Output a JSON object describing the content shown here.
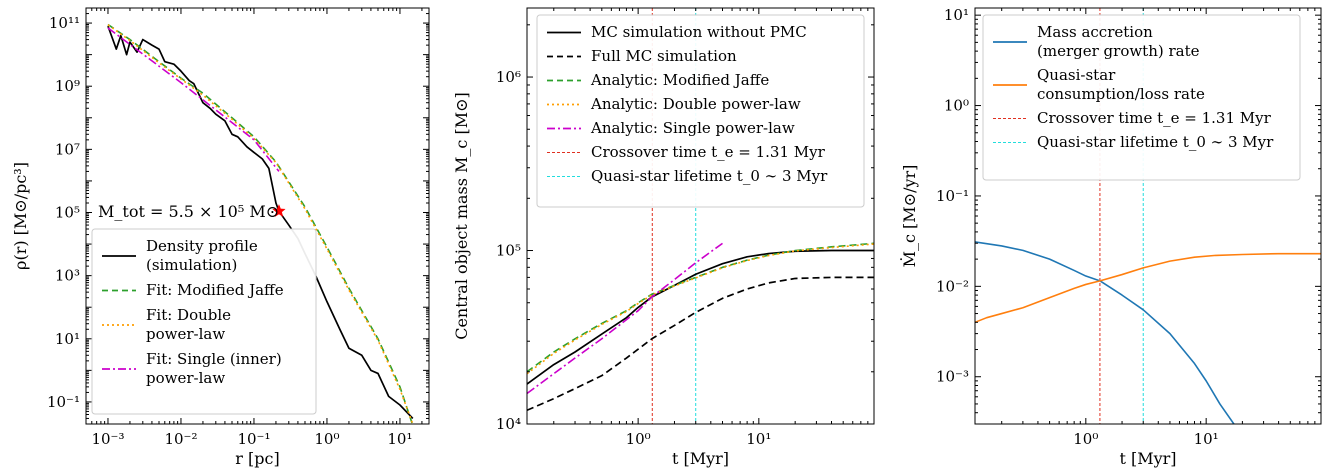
{
  "colors": {
    "sim": "#000000",
    "jaffe": "#2ca02c",
    "double": "#ff9f00",
    "single": "#cc00cc",
    "crossover": "#e03020",
    "lifetime": "#22dddd",
    "accretion": "#1f77b4",
    "consumption": "#ff7f0e",
    "star": "#ff0000"
  },
  "chart_data": [
    {
      "type": "line",
      "xlabel": "r [pc]",
      "ylabel": "ρ(r) [M⊙/pc³]",
      "xscale": "log",
      "yscale": "log",
      "xlim": [
        0.0005,
        25
      ],
      "ylim": [
        0.02,
        300000000000
      ],
      "x_ticks": [
        {
          "value": 0.001,
          "label": "10⁻³"
        },
        {
          "value": 0.01,
          "label": "10⁻²"
        },
        {
          "value": 0.1,
          "label": "10⁻¹"
        },
        {
          "value": 1,
          "label": "10⁰"
        },
        {
          "value": 10,
          "label": "10¹"
        }
      ],
      "y_ticks": [
        {
          "value": 0.1,
          "label": "10⁻¹"
        },
        {
          "value": 10,
          "label": "10¹"
        },
        {
          "value": 1000,
          "label": "10³"
        },
        {
          "value": 100000,
          "label": "10⁵"
        },
        {
          "value": 10000000,
          "label": "10⁷"
        },
        {
          "value": 1000000000,
          "label": "10⁹"
        },
        {
          "value": 100000000000,
          "label": "10¹¹"
        }
      ],
      "annotation": "M_tot = 5.5 × 10⁵ M⊙",
      "legend_position": "lower-left",
      "marker": {
        "x": 0.22,
        "y": 110000,
        "symbol": "star"
      },
      "series": [
        {
          "name": "Density profile (simulation)",
          "legend_lines": [
            "Density profile",
            "(simulation)"
          ],
          "color_key": "sim",
          "dash": "solid",
          "x": [
            0.001,
            0.0013,
            0.0015,
            0.0018,
            0.002,
            0.0025,
            0.003,
            0.004,
            0.005,
            0.006,
            0.008,
            0.01,
            0.013,
            0.015,
            0.02,
            0.025,
            0.03,
            0.04,
            0.05,
            0.06,
            0.08,
            0.1,
            0.13,
            0.16,
            0.2,
            0.22,
            0.3,
            0.4,
            0.5,
            0.7,
            1,
            1.5,
            2,
            3,
            4,
            5,
            7,
            10,
            15
          ],
          "y": [
            80000000000,
            15000000000,
            40000000000,
            10000000000,
            25000000000,
            12000000000,
            30000000000,
            20000000000,
            15000000000,
            6000000000,
            5000000000,
            3000000000,
            1500000000,
            1200000000,
            300000000,
            200000000,
            130000000,
            80000000,
            30000000,
            25000000,
            12000000,
            8000000,
            5000000,
            2500000,
            200000,
            110000,
            40000,
            15000,
            5000,
            1000,
            150,
            20,
            5,
            3,
            1,
            0.8,
            0.15,
            0.08,
            0.03
          ]
        },
        {
          "name": "Fit: Modified Jaffe",
          "legend_lines": [
            "Fit: Modified Jaffe"
          ],
          "color_key": "jaffe",
          "dash": "dashed",
          "x": [
            0.001,
            0.002,
            0.005,
            0.01,
            0.02,
            0.05,
            0.1,
            0.2,
            0.5,
            1,
            2,
            5,
            10,
            15
          ],
          "y": [
            90000000000,
            30000000000,
            6000000000,
            1800000000,
            600000000,
            100000000,
            25000000,
            4000000,
            150000,
            8000,
            400,
            10,
            0.3,
            0.018
          ]
        },
        {
          "name": "Fit: Double power-law",
          "legend_lines": [
            "Fit: Double",
            "power-law"
          ],
          "color_key": "double",
          "dash": "dotted",
          "x": [
            0.001,
            0.002,
            0.005,
            0.01,
            0.02,
            0.05,
            0.1,
            0.2,
            0.5,
            1,
            2,
            5,
            10,
            15
          ],
          "y": [
            88000000000,
            28000000000,
            5500000000,
            1700000000,
            520000000,
            90000000,
            22000000,
            3800000,
            130000,
            7000,
            350,
            9,
            0.25,
            0.02
          ]
        },
        {
          "name": "Fit: Single (inner) power-law",
          "legend_lines": [
            "Fit: Single (inner)",
            "power-law"
          ],
          "color_key": "single",
          "dash": "dashdot",
          "x": [
            0.001,
            0.01,
            0.1,
            0.22
          ],
          "y": [
            70000000000,
            1300000000,
            20000000,
            2000000
          ]
        }
      ]
    },
    {
      "type": "line",
      "xlabel": "t [Myr]",
      "ylabel": "Central object mass M_c [M⊙]",
      "xscale": "log",
      "yscale": "log",
      "xlim": [
        0.12,
        90
      ],
      "ylim": [
        10000,
        2500000
      ],
      "x_ticks": [
        {
          "value": 1,
          "label": "10⁰"
        },
        {
          "value": 10,
          "label": "10¹"
        }
      ],
      "y_ticks": [
        {
          "value": 10000,
          "label": "10⁴"
        },
        {
          "value": 100000,
          "label": "10⁵"
        },
        {
          "value": 1000000,
          "label": "10⁶"
        }
      ],
      "legend_position": "upper-left",
      "vlines": [
        {
          "x": 1.31,
          "color_key": "crossover"
        },
        {
          "x": 3,
          "color_key": "lifetime"
        }
      ],
      "series": [
        {
          "name": "MC simulation without PMC",
          "color_key": "sim",
          "dash": "solid",
          "x": [
            0.12,
            0.2,
            0.3,
            0.5,
            0.8,
            1,
            1.3,
            2,
            3,
            5,
            8,
            12,
            20,
            40,
            90
          ],
          "y": [
            17000,
            22000,
            26000,
            33000,
            41000,
            47000,
            54000,
            63000,
            73000,
            84000,
            92000,
            96000,
            99000,
            100000,
            100000
          ]
        },
        {
          "name": "Full MC simulation",
          "color_key": "sim",
          "dash": "dashed",
          "x": [
            0.12,
            0.2,
            0.3,
            0.5,
            0.8,
            1,
            1.3,
            2,
            3,
            5,
            8,
            12,
            20,
            40,
            90
          ],
          "y": [
            12000,
            14000,
            16000,
            19000,
            24000,
            27000,
            31000,
            37000,
            44000,
            53000,
            60000,
            65000,
            69000,
            70000,
            70000
          ]
        },
        {
          "name": "Analytic: Modified Jaffe",
          "color_key": "jaffe",
          "dash": "dashed",
          "x": [
            0.12,
            0.2,
            0.3,
            0.5,
            0.8,
            1,
            1.3,
            2,
            3,
            5,
            8,
            12,
            20,
            40,
            90
          ],
          "y": [
            20000,
            26000,
            31000,
            38000,
            45000,
            50000,
            56000,
            63000,
            70000,
            80000,
            88000,
            94000,
            100000,
            105000,
            110000
          ]
        },
        {
          "name": "Analytic: Double power-law",
          "color_key": "double",
          "dash": "dotted",
          "x": [
            0.12,
            0.2,
            0.3,
            0.5,
            0.8,
            1,
            1.3,
            2,
            3,
            5,
            8,
            12,
            20,
            40,
            90
          ],
          "y": [
            19500,
            25500,
            30500,
            37500,
            44500,
            49500,
            55500,
            62500,
            69500,
            79500,
            87500,
            93500,
            99500,
            104000,
            109000
          ]
        },
        {
          "name": "Analytic: Single power-law",
          "color_key": "single",
          "dash": "dashdot",
          "x": [
            0.12,
            0.3,
            0.5,
            1,
            1.3,
            2,
            3,
            5
          ],
          "y": [
            15000,
            24000,
            31000,
            45000,
            54000,
            68000,
            85000,
            110000
          ]
        },
        {
          "name": "Crossover time t_e = 1.31 Myr",
          "color_key": "crossover",
          "dash": "vline",
          "x": [],
          "y": []
        },
        {
          "name": "Quasi-star lifetime t_0 ∼ 3 Myr",
          "color_key": "lifetime",
          "dash": "vline",
          "x": [],
          "y": []
        }
      ]
    },
    {
      "type": "line",
      "xlabel": "t [Myr]",
      "ylabel": "Ṁ_c [M⊙/yr]",
      "xscale": "log",
      "yscale": "log",
      "xlim": [
        0.12,
        90
      ],
      "ylim": [
        0.0003,
        12
      ],
      "x_ticks": [
        {
          "value": 1,
          "label": "10⁰"
        },
        {
          "value": 10,
          "label": "10¹"
        }
      ],
      "y_ticks": [
        {
          "value": 0.001,
          "label": "10⁻³"
        },
        {
          "value": 0.01,
          "label": "10⁻²"
        },
        {
          "value": 0.1,
          "label": "10⁻¹"
        },
        {
          "value": 1,
          "label": "10⁰"
        },
        {
          "value": 10,
          "label": "10¹"
        }
      ],
      "legend_position": "upper-left",
      "vlines": [
        {
          "x": 1.31,
          "color_key": "crossover"
        },
        {
          "x": 3,
          "color_key": "lifetime"
        }
      ],
      "series": [
        {
          "name": "Mass accretion (merger growth) rate",
          "legend_lines": [
            "Mass accretion",
            "(merger growth) rate"
          ],
          "color_key": "accretion",
          "dash": "solid",
          "x": [
            0.12,
            0.2,
            0.3,
            0.5,
            0.8,
            1,
            1.31,
            2,
            3,
            5,
            8,
            10,
            13,
            17
          ],
          "y": [
            0.031,
            0.028,
            0.025,
            0.02,
            0.015,
            0.013,
            0.0115,
            0.008,
            0.0055,
            0.003,
            0.0014,
            0.0009,
            0.0005,
            0.0003
          ]
        },
        {
          "name": "Quasi-star consumption/loss rate",
          "legend_lines": [
            "Quasi-star",
            "consumption/loss rate"
          ],
          "color_key": "consumption",
          "dash": "solid",
          "x": [
            0.12,
            0.15,
            0.2,
            0.3,
            0.5,
            0.8,
            1,
            1.31,
            2,
            3,
            5,
            8,
            12,
            20,
            40,
            90
          ],
          "y": [
            0.004,
            0.0045,
            0.005,
            0.0058,
            0.0075,
            0.0095,
            0.0105,
            0.0115,
            0.0135,
            0.016,
            0.019,
            0.021,
            0.022,
            0.0225,
            0.023,
            0.023
          ]
        },
        {
          "name": "Crossover time t_e = 1.31 Myr",
          "color_key": "crossover",
          "dash": "vline",
          "x": [],
          "y": []
        },
        {
          "name": "Quasi-star lifetime t_0 ∼ 3 Myr",
          "color_key": "lifetime",
          "dash": "vline",
          "x": [],
          "y": []
        }
      ]
    }
  ]
}
